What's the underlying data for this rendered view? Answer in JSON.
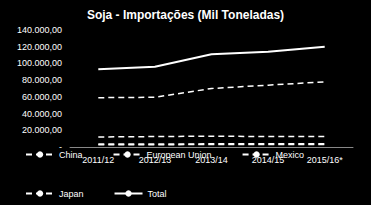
{
  "chart_data": {
    "type": "line",
    "title": "Soja - Importações (Mil Toneladas)",
    "categories": [
      "2011/12",
      "2012/13",
      "2013/14",
      "2014/15",
      "2015/16*"
    ],
    "series": [
      {
        "name": "China",
        "color": "#ffffff",
        "line_style": "dashed",
        "values": [
          59000,
          59500,
          70000,
          74000,
          78000
        ]
      },
      {
        "name": "European Union",
        "color": "#ffffff",
        "line_style": "dashed",
        "values": [
          12000,
          12500,
          13000,
          12500,
          12500
        ]
      },
      {
        "name": "Mexico",
        "color": "#ffffff",
        "line_style": "dashed",
        "values": [
          3500,
          3500,
          3800,
          3800,
          4000
        ]
      },
      {
        "name": "Japan",
        "color": "#ffffff",
        "line_style": "dashed",
        "values": [
          2800,
          2800,
          2900,
          3000,
          3000
        ]
      },
      {
        "name": "Total",
        "color": "#ffffff",
        "line_style": "solid",
        "values": [
          93000,
          96000,
          111000,
          114000,
          120000
        ]
      }
    ],
    "ylim": [
      0,
      140000
    ],
    "yticks": [
      {
        "value": 0,
        "label": "-"
      },
      {
        "value": 20000,
        "label": "20.000,00"
      },
      {
        "value": 40000,
        "label": "40.000,00"
      },
      {
        "value": 60000,
        "label": "60.000,00"
      },
      {
        "value": 80000,
        "label": "80.000,00"
      },
      {
        "value": 100000,
        "label": "100.000,00"
      },
      {
        "value": 120000,
        "label": "120.000,00"
      },
      {
        "value": 140000,
        "label": "140.000,00"
      }
    ],
    "grid": false,
    "legend": "bottom"
  }
}
